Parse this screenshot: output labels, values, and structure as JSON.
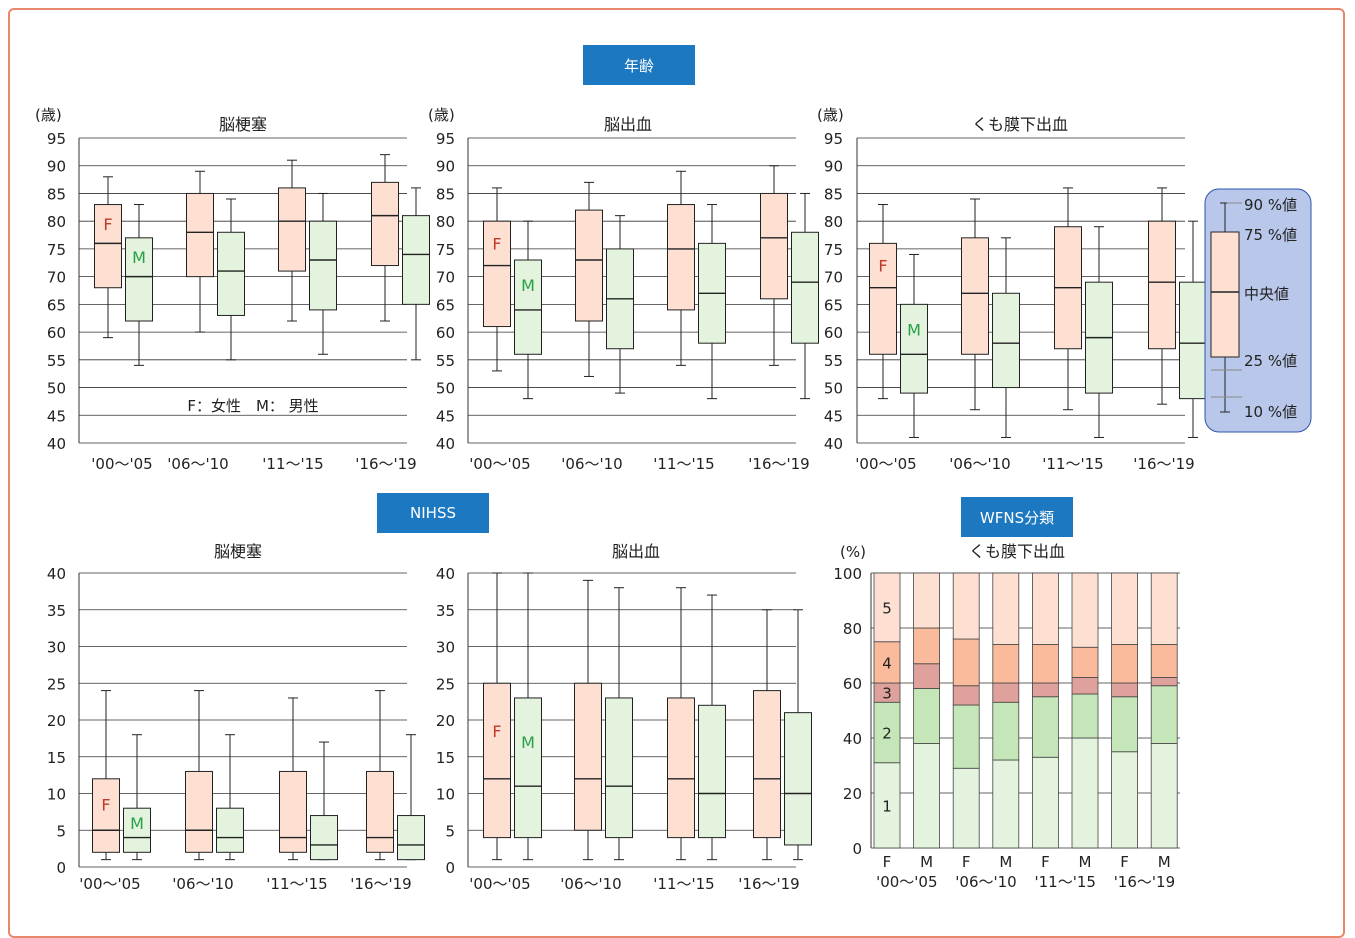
{
  "sections": {
    "age": "年齢",
    "nihss": "NIHSS",
    "wfns": "WFNS分類"
  },
  "colors": {
    "female_fill": "#fde0d2",
    "male_fill": "#e3f3de",
    "female_letter": "#c0392b",
    "male_letter": "#27a048",
    "banner": "#1c78c0",
    "frame": "#e8876b",
    "legend_bg": "#b9c8ea",
    "grade1": "#e3f3de",
    "grade2": "#c5e6b8",
    "grade3": "#dfa19c",
    "grade4": "#f9bb9b",
    "grade5": "#fde0d2"
  },
  "legend_box": {
    "labels": [
      "90 %値",
      "75 %値",
      "中央値",
      "25 %値",
      "10 %値"
    ]
  },
  "chart_data": [
    {
      "type": "box",
      "section": "年齢",
      "title": "脳梗塞",
      "ylabel": "(歳)",
      "ylim": [
        40,
        95
      ],
      "yticks": [
        40,
        45,
        50,
        55,
        60,
        65,
        70,
        75,
        80,
        85,
        90,
        95
      ],
      "categories": [
        "'00〜'05",
        "'06〜'10",
        "'11〜'15",
        "'16〜'19"
      ],
      "note": "F：女性　M： 男性",
      "series": [
        {
          "name": "F",
          "boxes": [
            {
              "p10": 59,
              "q1": 68,
              "median": 76,
              "q3": 83,
              "p90": 88
            },
            {
              "p10": 60,
              "q1": 70,
              "median": 78,
              "q3": 85,
              "p90": 89
            },
            {
              "p10": 62,
              "q1": 71,
              "median": 80,
              "q3": 86,
              "p90": 91
            },
            {
              "p10": 62,
              "q1": 72,
              "median": 81,
              "q3": 87,
              "p90": 92
            }
          ]
        },
        {
          "name": "M",
          "boxes": [
            {
              "p10": 54,
              "q1": 62,
              "median": 70,
              "q3": 77,
              "p90": 83
            },
            {
              "p10": 55,
              "q1": 63,
              "median": 71,
              "q3": 78,
              "p90": 84
            },
            {
              "p10": 56,
              "q1": 64,
              "median": 73,
              "q3": 80,
              "p90": 85
            },
            {
              "p10": 55,
              "q1": 65,
              "median": 74,
              "q3": 81,
              "p90": 86
            }
          ]
        }
      ]
    },
    {
      "type": "box",
      "section": "年齢",
      "title": "脳出血",
      "ylabel": "(歳)",
      "ylim": [
        40,
        95
      ],
      "yticks": [
        40,
        45,
        50,
        55,
        60,
        65,
        70,
        75,
        80,
        85,
        90,
        95
      ],
      "categories": [
        "'00〜'05",
        "'06〜'10",
        "'11〜'15",
        "'16〜'19"
      ],
      "series": [
        {
          "name": "F",
          "boxes": [
            {
              "p10": 53,
              "q1": 61,
              "median": 72,
              "q3": 80,
              "p90": 86
            },
            {
              "p10": 52,
              "q1": 62,
              "median": 73,
              "q3": 82,
              "p90": 87
            },
            {
              "p10": 54,
              "q1": 64,
              "median": 75,
              "q3": 83,
              "p90": 89
            },
            {
              "p10": 54,
              "q1": 66,
              "median": 77,
              "q3": 85,
              "p90": 90
            }
          ]
        },
        {
          "name": "M",
          "boxes": [
            {
              "p10": 48,
              "q1": 56,
              "median": 64,
              "q3": 73,
              "p90": 80
            },
            {
              "p10": 49,
              "q1": 57,
              "median": 66,
              "q3": 75,
              "p90": 81
            },
            {
              "p10": 48,
              "q1": 58,
              "median": 67,
              "q3": 76,
              "p90": 83
            },
            {
              "p10": 48,
              "q1": 58,
              "median": 69,
              "q3": 78,
              "p90": 85
            }
          ]
        }
      ]
    },
    {
      "type": "box",
      "section": "年齢",
      "title": "くも膜下出血",
      "ylabel": "(歳)",
      "ylim": [
        40,
        95
      ],
      "yticks": [
        40,
        45,
        50,
        55,
        60,
        65,
        70,
        75,
        80,
        85,
        90,
        95
      ],
      "categories": [
        "'00〜'05",
        "'06〜'10",
        "'11〜'15",
        "'16〜'19"
      ],
      "series": [
        {
          "name": "F",
          "boxes": [
            {
              "p10": 48,
              "q1": 56,
              "median": 68,
              "q3": 76,
              "p90": 83
            },
            {
              "p10": 46,
              "q1": 56,
              "median": 67,
              "q3": 77,
              "p90": 84
            },
            {
              "p10": 46,
              "q1": 57,
              "median": 68,
              "q3": 79,
              "p90": 86
            },
            {
              "p10": 47,
              "q1": 57,
              "median": 69,
              "q3": 80,
              "p90": 86
            }
          ]
        },
        {
          "name": "M",
          "boxes": [
            {
              "p10": 41,
              "q1": 49,
              "median": 56,
              "q3": 65,
              "p90": 74
            },
            {
              "p10": 41,
              "q1": 50,
              "median": 58,
              "q3": 67,
              "p90": 77
            },
            {
              "p10": 41,
              "q1": 49,
              "median": 59,
              "q3": 69,
              "p90": 79
            },
            {
              "p10": 41,
              "q1": 48,
              "median": 58,
              "q3": 69,
              "p90": 80
            }
          ]
        }
      ]
    },
    {
      "type": "box",
      "section": "NIHSS",
      "title": "脳梗塞",
      "ylabel": "",
      "ylim": [
        0,
        40
      ],
      "yticks": [
        0,
        5,
        10,
        15,
        20,
        25,
        30,
        35,
        40
      ],
      "categories": [
        "'00〜'05",
        "'06〜'10",
        "'11〜'15",
        "'16〜'19"
      ],
      "series": [
        {
          "name": "F",
          "boxes": [
            {
              "p10": 1,
              "q1": 2,
              "median": 5,
              "q3": 12,
              "p90": 24
            },
            {
              "p10": 1,
              "q1": 2,
              "median": 5,
              "q3": 13,
              "p90": 24
            },
            {
              "p10": 1,
              "q1": 2,
              "median": 4,
              "q3": 13,
              "p90": 23
            },
            {
              "p10": 1,
              "q1": 2,
              "median": 4,
              "q3": 13,
              "p90": 24
            }
          ]
        },
        {
          "name": "M",
          "boxes": [
            {
              "p10": 1,
              "q1": 2,
              "median": 4,
              "q3": 8,
              "p90": 18
            },
            {
              "p10": 1,
              "q1": 2,
              "median": 4,
              "q3": 8,
              "p90": 18
            },
            {
              "p10": 1,
              "q1": 1,
              "median": 3,
              "q3": 7,
              "p90": 17
            },
            {
              "p10": 1,
              "q1": 1,
              "median": 3,
              "q3": 7,
              "p90": 18
            }
          ]
        }
      ]
    },
    {
      "type": "box",
      "section": "NIHSS",
      "title": "脳出血",
      "ylabel": "",
      "ylim": [
        0,
        40
      ],
      "yticks": [
        0,
        5,
        10,
        15,
        20,
        25,
        30,
        35,
        40
      ],
      "categories": [
        "'00〜'05",
        "'06〜'10",
        "'11〜'15",
        "'16〜'19"
      ],
      "series": [
        {
          "name": "F",
          "boxes": [
            {
              "p10": 1,
              "q1": 4,
              "median": 12,
              "q3": 25,
              "p90": 40
            },
            {
              "p10": 1,
              "q1": 5,
              "median": 12,
              "q3": 25,
              "p90": 39
            },
            {
              "p10": 1,
              "q1": 4,
              "median": 12,
              "q3": 23,
              "p90": 38
            },
            {
              "p10": 1,
              "q1": 4,
              "median": 12,
              "q3": 24,
              "p90": 35
            }
          ]
        },
        {
          "name": "M",
          "boxes": [
            {
              "p10": 1,
              "q1": 4,
              "median": 11,
              "q3": 23,
              "p90": 40
            },
            {
              "p10": 1,
              "q1": 4,
              "median": 11,
              "q3": 23,
              "p90": 38
            },
            {
              "p10": 1,
              "q1": 4,
              "median": 10,
              "q3": 22,
              "p90": 37
            },
            {
              "p10": 1,
              "q1": 3,
              "median": 10,
              "q3": 21,
              "p90": 35
            }
          ]
        }
      ]
    },
    {
      "type": "stacked_bar",
      "section": "WFNS分類",
      "title": "くも膜下出血",
      "ylabel": "(%)",
      "ylim": [
        0,
        100
      ],
      "yticks": [
        0,
        20,
        40,
        60,
        80,
        100
      ],
      "bars": [
        "F",
        "M",
        "F",
        "M",
        "F",
        "M",
        "F",
        "M"
      ],
      "periods": [
        "'00〜'05",
        "'06〜'10",
        "'11〜'15",
        "'16〜'19"
      ],
      "segment_labels": [
        "1",
        "2",
        "3",
        "4",
        "5"
      ],
      "cumulative": [
        [
          31,
          53,
          60,
          75,
          100
        ],
        [
          38,
          58,
          67,
          80,
          100
        ],
        [
          29,
          52,
          59,
          76,
          100
        ],
        [
          32,
          53,
          60,
          74,
          100
        ],
        [
          33,
          55,
          60,
          74,
          100
        ],
        [
          40,
          56,
          62,
          73,
          100
        ],
        [
          35,
          55,
          60,
          74,
          100
        ],
        [
          38,
          59,
          62,
          74,
          100
        ]
      ]
    }
  ]
}
